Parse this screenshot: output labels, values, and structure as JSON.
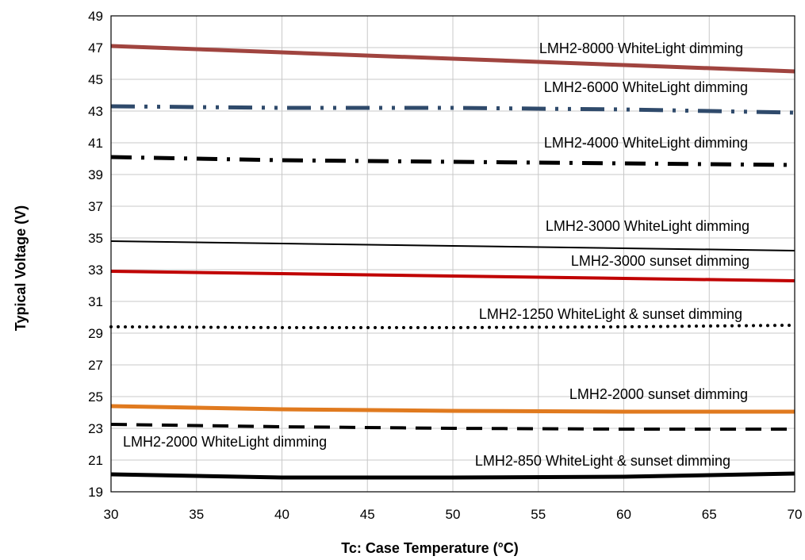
{
  "chart_data": {
    "type": "line",
    "title": "",
    "xlabel": "Tc: Case Temperature (°C)",
    "ylabel": "Typical Voltage (V)",
    "xlim": [
      30,
      70
    ],
    "ylim": [
      19,
      49
    ],
    "xticks": [
      30,
      35,
      40,
      45,
      50,
      55,
      60,
      65,
      70
    ],
    "yticks": [
      19,
      21,
      23,
      25,
      27,
      29,
      31,
      33,
      35,
      37,
      39,
      41,
      43,
      45,
      47,
      49
    ],
    "grid": true,
    "legend": "none",
    "series": [
      {
        "name": "LMH2-8000 WhiteLight dimming",
        "color": "#a0443f",
        "style": "solid",
        "width": 5,
        "x": [
          30,
          40,
          50,
          60,
          70
        ],
        "values": [
          47.1,
          46.7,
          46.3,
          45.9,
          45.5
        ]
      },
      {
        "name": "LMH2-6000 WhiteLight dimming",
        "color": "#2f4a6b",
        "style": "dashdotdot",
        "width": 5,
        "x": [
          30,
          40,
          50,
          60,
          70
        ],
        "values": [
          43.3,
          43.2,
          43.2,
          43.1,
          42.9
        ]
      },
      {
        "name": "LMH2-4000 WhiteLight dimming",
        "color": "#000000",
        "style": "dashdot",
        "width": 5,
        "x": [
          30,
          40,
          50,
          60,
          70
        ],
        "values": [
          40.1,
          39.9,
          39.8,
          39.7,
          39.6
        ]
      },
      {
        "name": "LMH2-3000 WhiteLight dimming",
        "color": "#000000",
        "style": "solid",
        "width": 2,
        "x": [
          30,
          40,
          50,
          60,
          70
        ],
        "values": [
          34.8,
          34.65,
          34.5,
          34.35,
          34.2
        ]
      },
      {
        "name": "LMH2-3000 sunset dimming",
        "color": "#c00000",
        "style": "solid",
        "width": 4,
        "x": [
          30,
          40,
          50,
          60,
          70
        ],
        "values": [
          32.9,
          32.75,
          32.6,
          32.45,
          32.3
        ]
      },
      {
        "name": "LMH2-1250 WhiteLight & sunset dimming",
        "color": "#000000",
        "style": "dot",
        "width": 4,
        "x": [
          30,
          40,
          50,
          60,
          70
        ],
        "values": [
          29.4,
          29.35,
          29.35,
          29.4,
          29.5
        ]
      },
      {
        "name": "LMH2-2000 sunset dimming",
        "color": "#e07a1f",
        "style": "solid",
        "width": 5,
        "x": [
          30,
          40,
          50,
          60,
          70
        ],
        "values": [
          24.4,
          24.2,
          24.1,
          24.05,
          24.05
        ]
      },
      {
        "name": "LMH2-2000 WhiteLight dimming",
        "color": "#000000",
        "style": "dash",
        "width": 4,
        "x": [
          30,
          40,
          50,
          60,
          70
        ],
        "values": [
          23.25,
          23.1,
          23.0,
          22.95,
          22.95
        ]
      },
      {
        "name": "LMH2-850 WhiteLight & sunset dimming",
        "color": "#000000",
        "style": "solid",
        "width": 5,
        "x": [
          30,
          40,
          50,
          60,
          70
        ],
        "values": [
          20.1,
          19.9,
          19.9,
          19.95,
          20.15
        ]
      }
    ]
  }
}
